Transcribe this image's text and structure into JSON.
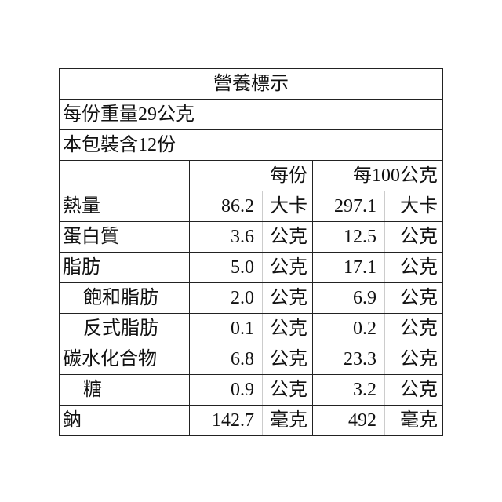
{
  "title": "營養標示",
  "serving_size": "每份重量29公克",
  "servings_per_package": "本包裝含12份",
  "headers": {
    "per_serving": "每份",
    "per_100g": "每100公克"
  },
  "rows": [
    {
      "label": "熱量",
      "indent": false,
      "per_serving": "86.2",
      "per_serving_unit": "大卡",
      "per_100g": "297.1",
      "per_100g_unit": "大卡"
    },
    {
      "label": "蛋白質",
      "indent": false,
      "per_serving": "3.6",
      "per_serving_unit": "公克",
      "per_100g": "12.5",
      "per_100g_unit": "公克"
    },
    {
      "label": "脂肪",
      "indent": false,
      "per_serving": "5.0",
      "per_serving_unit": "公克",
      "per_100g": "17.1",
      "per_100g_unit": "公克"
    },
    {
      "label": "飽和脂肪",
      "indent": true,
      "per_serving": "2.0",
      "per_serving_unit": "公克",
      "per_100g": "6.9",
      "per_100g_unit": "公克"
    },
    {
      "label": "反式脂肪",
      "indent": true,
      "per_serving": "0.1",
      "per_serving_unit": "公克",
      "per_100g": "0.2",
      "per_100g_unit": "公克"
    },
    {
      "label": "碳水化合物",
      "indent": false,
      "per_serving": "6.8",
      "per_serving_unit": "公克",
      "per_100g": "23.3",
      "per_100g_unit": "公克"
    },
    {
      "label": "糖",
      "indent": true,
      "per_serving": "0.9",
      "per_serving_unit": "公克",
      "per_100g": "3.2",
      "per_100g_unit": "公克"
    },
    {
      "label": "鈉",
      "indent": false,
      "per_serving": "142.7",
      "per_serving_unit": "毫克",
      "per_100g": "492",
      "per_100g_unit": "毫克"
    }
  ]
}
